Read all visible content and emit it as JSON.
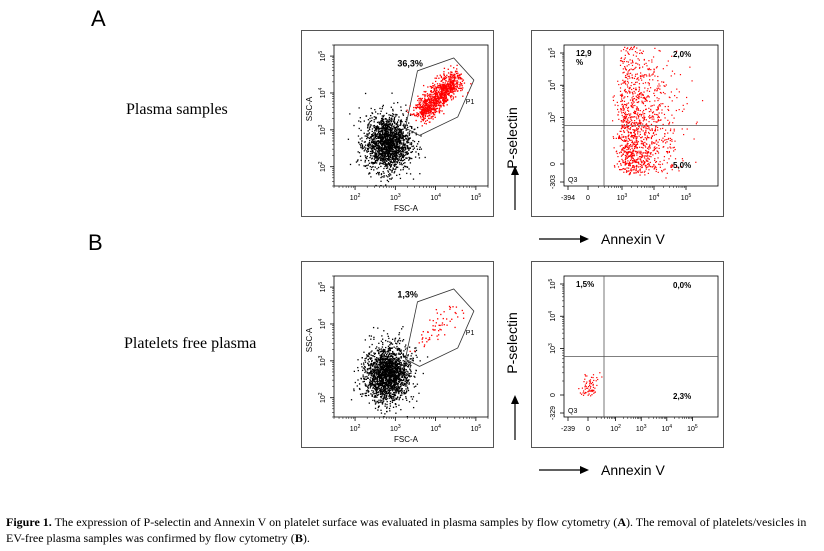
{
  "figure": {
    "panel_a_letter": "A",
    "panel_b_letter": "B",
    "row_a_label": "Plasma samples",
    "row_b_label": "Platelets free plasma",
    "y_arrow_label": "P-selectin",
    "x_arrow_label": "Annexin V",
    "caption": {
      "label": "Figure 1.",
      "text_1": " The expression of P-selectin and Annexin V on platelet surface was evaluated in plasma samples by flow cytometry (",
      "ref_a": "A",
      "text_2": "). The removal of platelets/vesicles in EV-free plasma samples was confirmed by flow cytometry (",
      "ref_b": "B",
      "text_3": ")."
    }
  },
  "chart_data": [
    {
      "type": "scatter",
      "panel": "A-left",
      "xlabel": "FSC-A",
      "ylabel": "SSC-A",
      "x_tick_labels": [
        "10",
        "10",
        "10",
        "10"
      ],
      "x_tick_exponents": [
        "2",
        "3",
        "4",
        "5"
      ],
      "y_tick_labels": [
        "10",
        "10",
        "10",
        "10"
      ],
      "y_tick_exponents": [
        "2",
        "3",
        "4",
        "5"
      ],
      "gate": {
        "name": "P1",
        "percent": "36,3%"
      },
      "scale": "log",
      "xlim": [
        30,
        200000
      ],
      "ylim": [
        30,
        200000
      ],
      "colors": {
        "ungated": "#000000",
        "gated": "#ff0000"
      }
    },
    {
      "type": "scatter",
      "panel": "A-right",
      "x_tick_labels": [
        "-394",
        "0",
        "10",
        "10",
        "10"
      ],
      "x_tick_exponents": [
        "",
        "",
        "3",
        "4",
        "5"
      ],
      "y_tick_labels": [
        "-303",
        "0",
        "10",
        "10",
        "10"
      ],
      "y_tick_exponents": [
        "",
        "",
        "3",
        "4",
        "5"
      ],
      "quadrants": {
        "upper_left": "12,9\n%",
        "upper_right": "2,0%",
        "lower_right": "5,0%",
        "lower_left_name": "Q3"
      },
      "colors": {
        "events": "#ff0000"
      }
    },
    {
      "type": "scatter",
      "panel": "B-left",
      "xlabel": "FSC-A",
      "ylabel": "SSC-A",
      "x_tick_labels": [
        "10",
        "10",
        "10",
        "10"
      ],
      "x_tick_exponents": [
        "2",
        "3",
        "4",
        "5"
      ],
      "y_tick_labels": [
        "10",
        "10",
        "10",
        "10"
      ],
      "y_tick_exponents": [
        "2",
        "3",
        "4",
        "5"
      ],
      "gate": {
        "name": "P1",
        "percent": "1,3%"
      },
      "scale": "log",
      "xlim": [
        30,
        200000
      ],
      "ylim": [
        30,
        200000
      ],
      "colors": {
        "ungated": "#000000",
        "gated": "#ff0000"
      }
    },
    {
      "type": "scatter",
      "panel": "B-right",
      "x_tick_labels": [
        "-239",
        "0",
        "10",
        "10",
        "10",
        "10"
      ],
      "x_tick_exponents": [
        "",
        "",
        "2",
        "3",
        "4",
        "5"
      ],
      "y_tick_labels": [
        "-329",
        "0",
        "10",
        "10",
        "10"
      ],
      "y_tick_exponents": [
        "",
        "",
        "3",
        "4",
        "5"
      ],
      "quadrants": {
        "upper_left": "1,5%",
        "upper_right": "0,0%",
        "lower_right": "2,3%",
        "lower_left_name": "Q3"
      },
      "colors": {
        "events": "#ff0000"
      }
    }
  ]
}
